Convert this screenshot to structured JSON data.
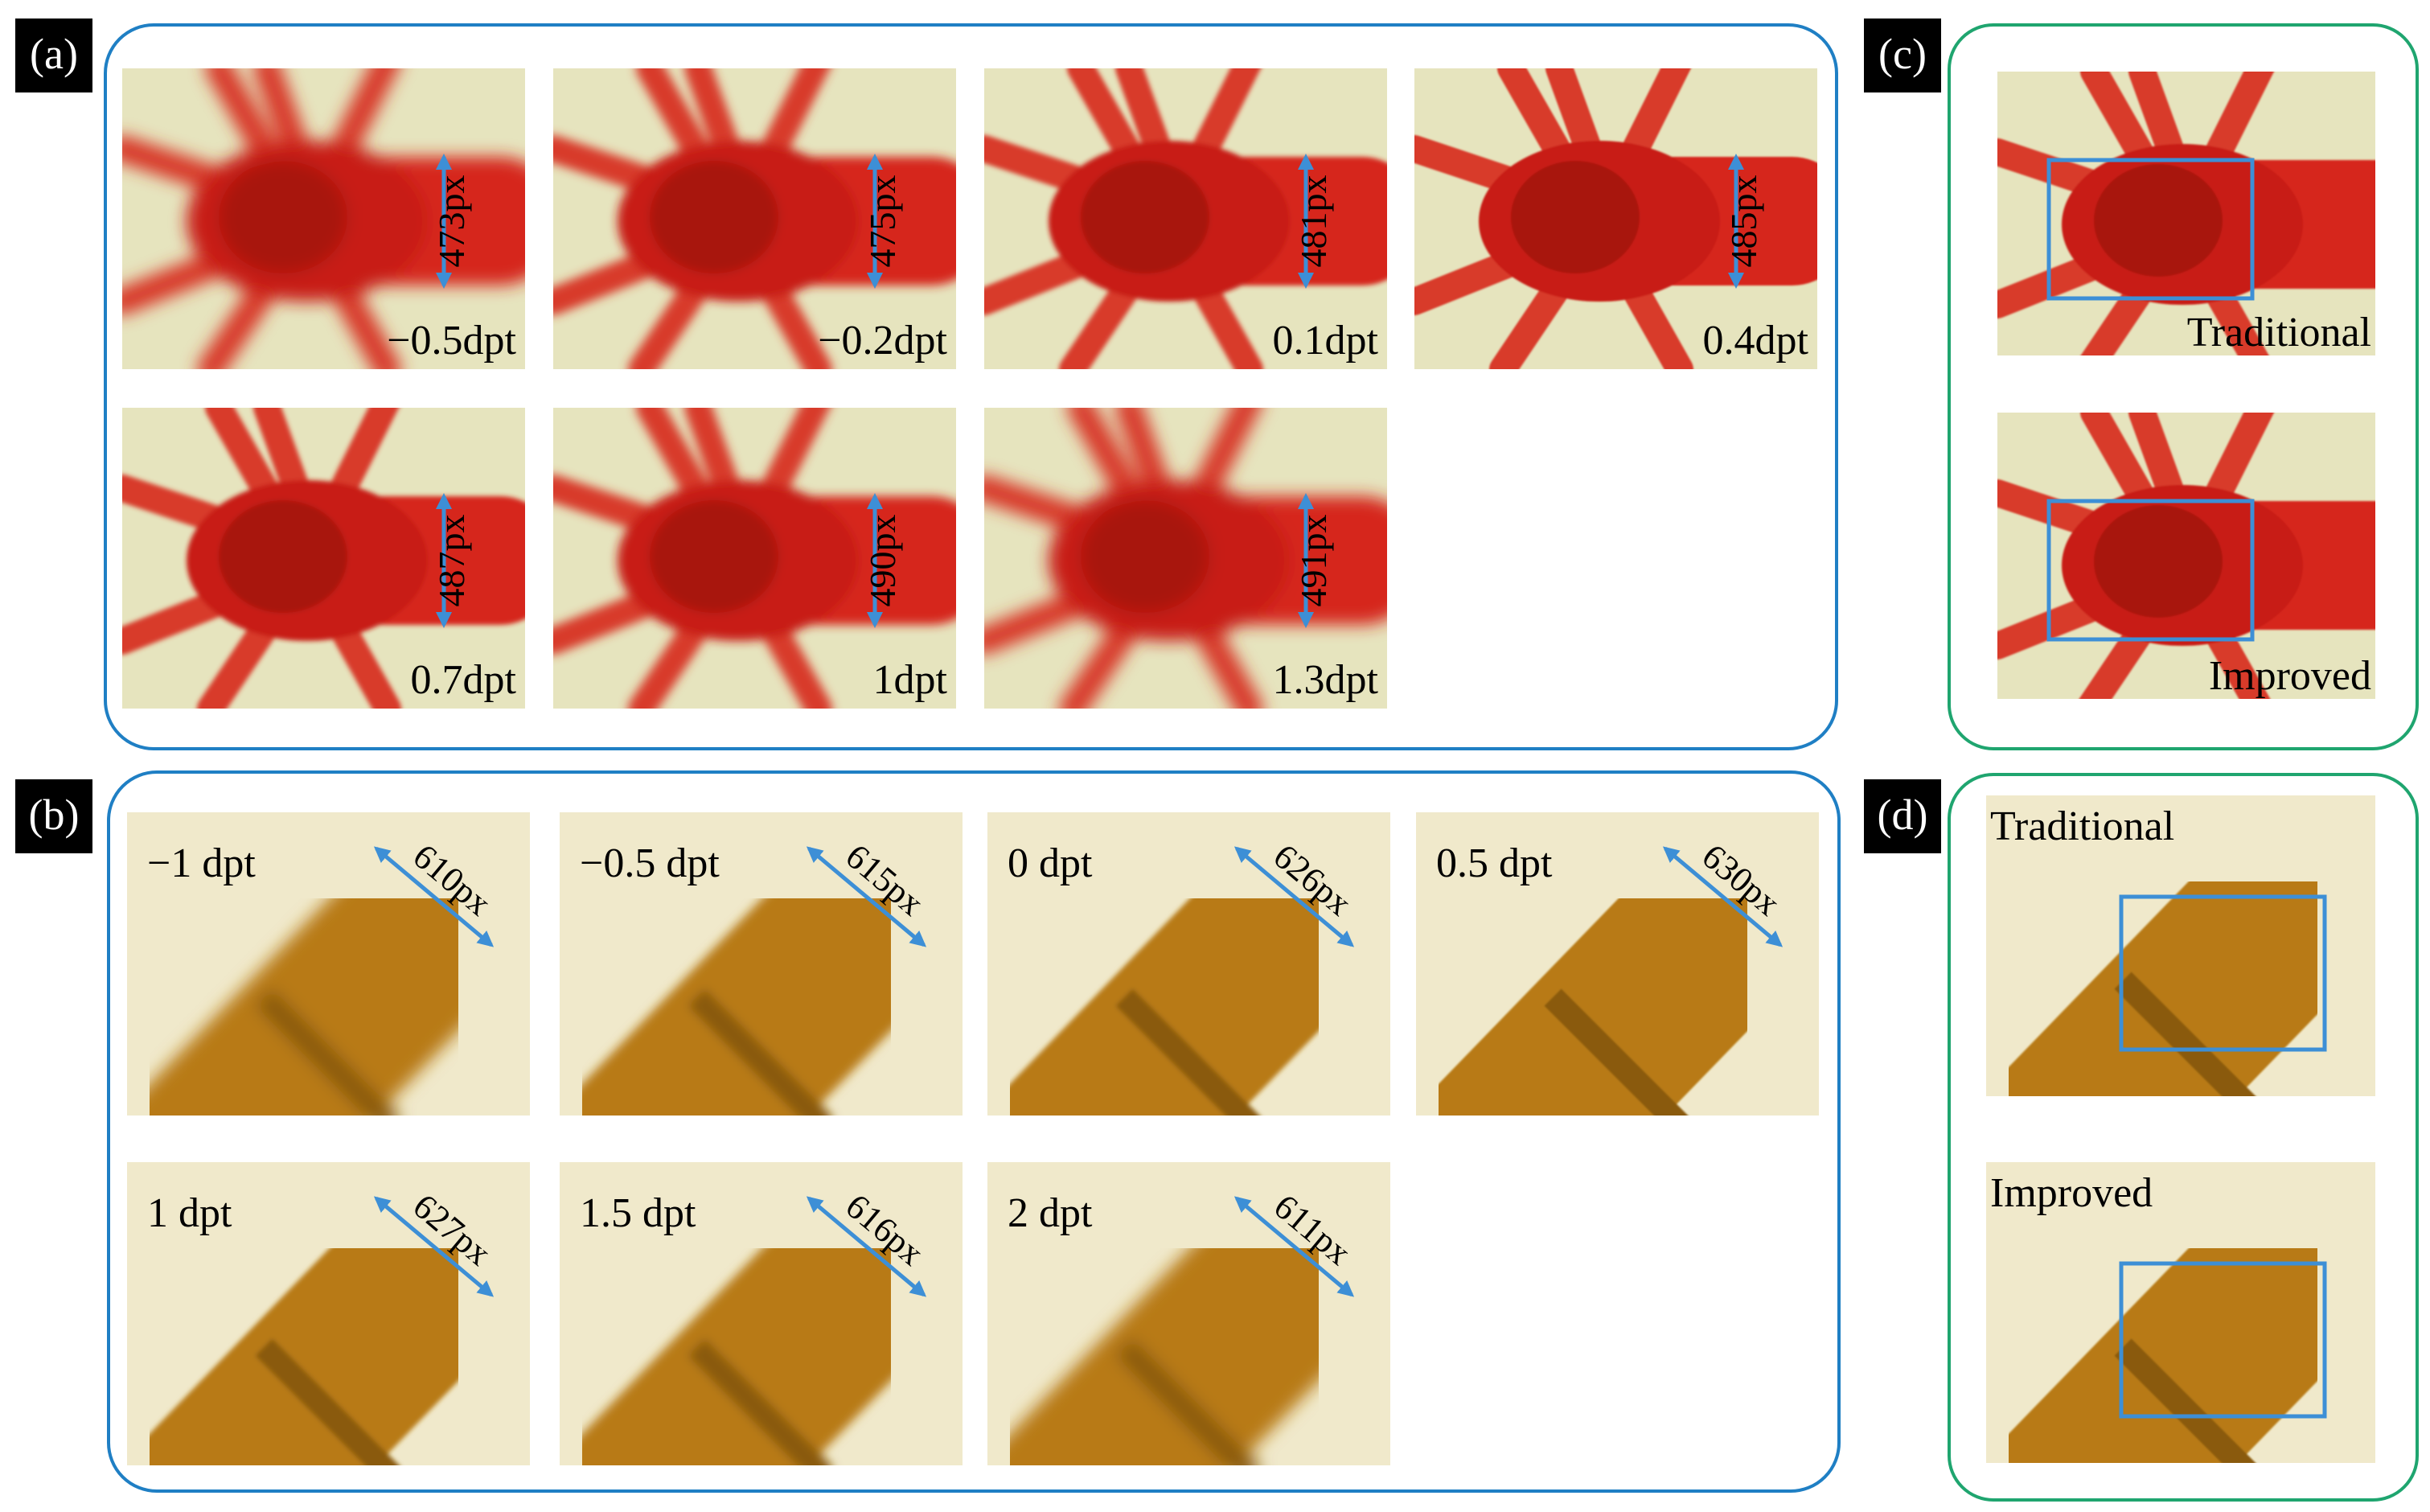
{
  "panels": {
    "a": {
      "label": "(a)",
      "images": [
        {
          "focus": "−0.5dpt",
          "size": "473px"
        },
        {
          "focus": "−0.2dpt",
          "size": "475px"
        },
        {
          "focus": "0.1dpt",
          "size": "481px"
        },
        {
          "focus": "0.4dpt",
          "size": "485px"
        },
        {
          "focus": "0.7dpt",
          "size": "487px"
        },
        {
          "focus": "1dpt",
          "size": "490px"
        },
        {
          "focus": "1.3dpt",
          "size": "491px"
        }
      ]
    },
    "b": {
      "label": "(b)",
      "images": [
        {
          "focus": "−1 dpt",
          "size": "610px"
        },
        {
          "focus": "−0.5 dpt",
          "size": "615px"
        },
        {
          "focus": "0 dpt",
          "size": "626px"
        },
        {
          "focus": "0.5 dpt",
          "size": "630px"
        },
        {
          "focus": "1 dpt",
          "size": "627px"
        },
        {
          "focus": "1.5 dpt",
          "size": "616px"
        },
        {
          "focus": "2 dpt",
          "size": "611px"
        }
      ]
    },
    "c": {
      "label": "(c)",
      "images": [
        "Traditional",
        "Improved"
      ]
    },
    "d": {
      "label": "(d)",
      "images": [
        "Traditional",
        "Improved"
      ]
    }
  }
}
